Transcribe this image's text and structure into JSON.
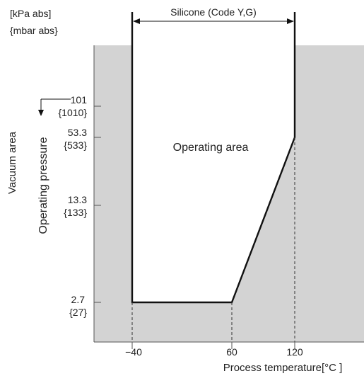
{
  "units": {
    "kpa": "[kPa abs]",
    "mbar": "{mbar  abs}"
  },
  "material_label": "Silicone (Code Y,G)",
  "area_label": "Operating area",
  "y_axis": {
    "title": "Operating  pressure",
    "vacuum_label": "Vacuum area",
    "ticks": [
      {
        "kpa": "101",
        "mbar": "{1010}"
      },
      {
        "kpa": "53.3",
        "mbar": "{533}"
      },
      {
        "kpa": "13.3",
        "mbar": "{133}"
      },
      {
        "kpa": "2.7",
        "mbar": "{27}"
      }
    ]
  },
  "x_axis": {
    "title": "Process temperature[°C ]",
    "ticks": [
      "−40",
      "60",
      "120"
    ]
  },
  "colors": {
    "shaded": "#d3d3d3",
    "line": "#111111"
  },
  "chart_data": {
    "type": "area",
    "x": [
      -40,
      -40,
      60,
      120,
      120
    ],
    "y_kpa": [
      101,
      2.7,
      2.7,
      53.3,
      101
    ],
    "xlabel": "Process temperature[°C ]",
    "ylabel": "Operating  pressure",
    "y_scale": "log",
    "series": [
      {
        "name": "Operating area"
      }
    ]
  }
}
